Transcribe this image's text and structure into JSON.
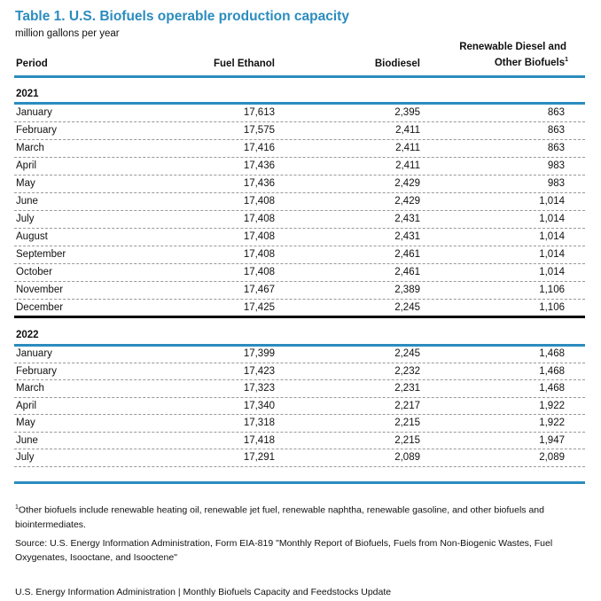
{
  "title": "Table 1.  U.S.  Biofuels operable production capacity",
  "units": "million gallons per year",
  "columns": {
    "period": "Period",
    "ethanol": "Fuel Ethanol",
    "biodiesel": "Biodiesel",
    "renewable_line1": "Renewable Diesel and",
    "renewable_line2": "Other Biofuels",
    "renewable_sup": "1"
  },
  "years": [
    {
      "year": "2021",
      "rows": [
        [
          "January",
          "17,613",
          "2,395",
          "863"
        ],
        [
          "February",
          "17,575",
          "2,411",
          "863"
        ],
        [
          "March",
          "17,416",
          "2,411",
          "863"
        ],
        [
          "April",
          "17,436",
          "2,411",
          "983"
        ],
        [
          "May",
          "17,436",
          "2,429",
          "983"
        ],
        [
          "June",
          "17,408",
          "2,429",
          "1,014"
        ],
        [
          "July",
          "17,408",
          "2,431",
          "1,014"
        ],
        [
          "August",
          "17,408",
          "2,431",
          "1,014"
        ],
        [
          "September",
          "17,408",
          "2,461",
          "1,014"
        ],
        [
          "October",
          "17,408",
          "2,461",
          "1,014"
        ],
        [
          "November",
          "17,467",
          "2,389",
          "1,106"
        ],
        [
          "December",
          "17,425",
          "2,245",
          "1,106"
        ]
      ]
    },
    {
      "year": "2022",
      "rows": [
        [
          "January",
          "17,399",
          "2,245",
          "1,468"
        ],
        [
          "February",
          "17,423",
          "2,232",
          "1,468"
        ],
        [
          "March",
          "17,323",
          "2,231",
          "1,468"
        ],
        [
          "April",
          "17,340",
          "2,217",
          "1,922"
        ],
        [
          "May",
          "17,318",
          "2,215",
          "1,922"
        ],
        [
          "June",
          "17,418",
          "2,215",
          "1,947"
        ],
        [
          "July",
          "17,291",
          "2,089",
          "2,089"
        ]
      ]
    }
  ],
  "footnote_sup": "1",
  "footnote": "Other biofuels include renewable heating oil, renewable jet fuel, renewable naphtha, renewable gasoline, and other biofuels and biointermediates.",
  "source": "Source:  U.S. Energy Information Administration, Form EIA-819 \"Monthly Report of Biofuels, Fuels from Non-Biogenic Wastes, Fuel Oxygenates, Isooctane, and Isooctene\"",
  "footer": "U.S. Energy Information Administration | Monthly Biofuels Capacity and Feedstocks Update"
}
